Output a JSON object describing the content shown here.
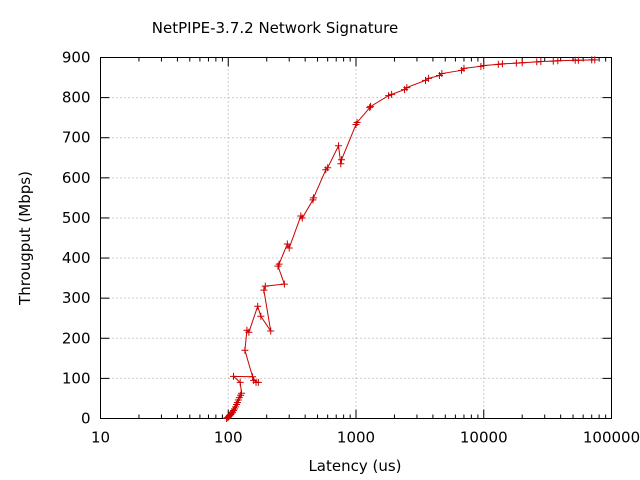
{
  "chart_data": {
    "type": "line",
    "title": "NetPIPE-3.7.2 Network Signature",
    "xlabel": "Latency (us)",
    "ylabel": "Througput (Mbps)",
    "x_scale": "log",
    "xlim": [
      10,
      100000
    ],
    "ylim": [
      0,
      900
    ],
    "x_ticks": [
      10,
      100,
      1000,
      10000,
      100000
    ],
    "x_tick_labels": [
      "10",
      "100",
      "1000",
      "10000",
      "100000"
    ],
    "y_ticks": [
      0,
      100,
      200,
      300,
      400,
      500,
      600,
      700,
      800,
      900
    ],
    "y_tick_labels": [
      "0",
      "100",
      "200",
      "300",
      "400",
      "500",
      "600",
      "700",
      "800",
      "900"
    ],
    "grid": true,
    "line_color": "#cc0000",
    "marker": "plus",
    "series": [
      {
        "points": [
          [
            97,
            0
          ],
          [
            98,
            2
          ],
          [
            100,
            3
          ],
          [
            101,
            5
          ],
          [
            102,
            7
          ],
          [
            104,
            9
          ],
          [
            105,
            11
          ],
          [
            107,
            14
          ],
          [
            108,
            16
          ],
          [
            110,
            20
          ],
          [
            112,
            24
          ],
          [
            114,
            29
          ],
          [
            116,
            35
          ],
          [
            118,
            40
          ],
          [
            120,
            46
          ],
          [
            122,
            52
          ],
          [
            125,
            58
          ],
          [
            127,
            63
          ],
          [
            124,
            90
          ],
          [
            110,
            105
          ],
          [
            155,
            104
          ],
          [
            165,
            90
          ],
          [
            172,
            90
          ],
          [
            158,
            95
          ],
          [
            135,
            170
          ],
          [
            140,
            220
          ],
          [
            145,
            215
          ],
          [
            170,
            280
          ],
          [
            180,
            255
          ],
          [
            215,
            218
          ],
          [
            190,
            320
          ],
          [
            195,
            330
          ],
          [
            275,
            335
          ],
          [
            245,
            380
          ],
          [
            250,
            385
          ],
          [
            290,
            435
          ],
          [
            300,
            425
          ],
          [
            370,
            505
          ],
          [
            380,
            500
          ],
          [
            460,
            545
          ],
          [
            465,
            550
          ],
          [
            580,
            620
          ],
          [
            600,
            625
          ],
          [
            730,
            680
          ],
          [
            760,
            635
          ],
          [
            770,
            645
          ],
          [
            1000,
            733
          ],
          [
            1020,
            738
          ],
          [
            1280,
            775
          ],
          [
            1300,
            778
          ],
          [
            1800,
            805
          ],
          [
            1900,
            808
          ],
          [
            2400,
            820
          ],
          [
            2500,
            825
          ],
          [
            3500,
            843
          ],
          [
            3700,
            848
          ],
          [
            4500,
            855
          ],
          [
            4700,
            860
          ],
          [
            6700,
            868
          ],
          [
            7000,
            873
          ],
          [
            9500,
            878
          ],
          [
            10000,
            880
          ],
          [
            13000,
            883
          ],
          [
            14000,
            884
          ],
          [
            18000,
            886
          ],
          [
            20000,
            887
          ],
          [
            26000,
            889
          ],
          [
            28000,
            890
          ],
          [
            35000,
            891
          ],
          [
            38000,
            892
          ],
          [
            52000,
            893
          ],
          [
            55000,
            893
          ],
          [
            70000,
            894
          ],
          [
            74000,
            894
          ]
        ]
      }
    ]
  }
}
